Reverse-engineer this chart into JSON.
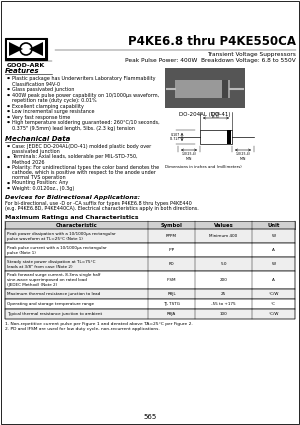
{
  "title": "P4KE6.8 thru P4KE550CA",
  "subtitle1": "Transient Voltage Suppressors",
  "subtitle2": "Peak Pulse Power: 400W  Breakdown Voltage: 6.8 to 550V",
  "company": "GOOD-ARK",
  "page": "565",
  "features_title": "Features",
  "features": [
    "Plastic package has Underwriters Laboratory Flammability\nClassification 94V-0",
    "Glass passivated junction",
    "400W peak pulse power capability on 10/1000μs waveform,\nrepetition rate (duty cycle): 0.01%",
    "Excellent clamping capability",
    "Low incremental surge resistance",
    "Very fast response time",
    "High temperature soldering guaranteed: 260°C/10 seconds,\n0.375\" (9.5mm) lead length, 5lbs. (2.3 kg) tension"
  ],
  "package_label": "DO-204AL (DO-41)",
  "mech_title": "Mechanical Data",
  "mech_items": [
    "Case: JEDEC DO-204AL(DO-41) molded plastic body over\npassivated junction",
    "Terminals: Axial leads, solderable per MIL-STD-750,\nMethod 2026",
    "Polarity: For unidirectional types the color band denotes the\ncathode, which is positive with respect to the anode under\nnormal TVS operation",
    "Mounting Position: Any",
    "Weight: 0.0120oz., (0.3g)"
  ],
  "bidir_title": "Devices for Bidirectional Applications:",
  "bidir_text1": "For bi-directional, use -D or -CA suffix for types P4KE6.8 thru types P4KE440",
  "bidir_text2": "(e.g. P4KE6.8D, P4KE440CA). Electrical characteristics apply in both directions.",
  "maxrat_title": "Maximum Ratings and Characteristics",
  "table_headers": [
    "Characteristic",
    "Symbol",
    "Values",
    "Unit"
  ],
  "table_rows": [
    [
      "Peak power dissipation with a 10/1000μs rectangular\npulse waveform at TL=25°C (Note 1)",
      "PPPM",
      "Minimum 400",
      "W"
    ],
    [
      "Peak pulse current with a 10/1000μs rectangular\npulse (Note 1)",
      "IPP",
      "",
      "A"
    ],
    [
      "Steady state power dissipation at TL=75°C\nleads at 3/8\" from case (Note 2)",
      "PD",
      "5.0",
      "W"
    ],
    [
      "Peak forward surge current, 8.3ms single half\nsine-wave superimposed on rated load\n(JEDEC Method) (Note 2)",
      "IFSM",
      "200",
      "A"
    ],
    [
      "Maximum thermal resistance junction to lead",
      "RθJL",
      "25",
      "°C/W"
    ],
    [
      "Operating and storage temperature range",
      "TJ, TSTG",
      "-55 to +175",
      "°C"
    ],
    [
      "Typical thermal resistance junction to ambient",
      "RθJA",
      "100",
      "°C/W"
    ]
  ],
  "note1": "1. Non-repetitive current pulse per Figure 1 and derated above TA=25°C per Figure 2.",
  "note2": "2. PD and IFSM are used for low duty cycle, non-recurrent applications.",
  "dim_text": "Dimensions in inches and (millimeters)",
  "bg_color": "#ffffff",
  "text_color": "#000000",
  "line_color": "#000000",
  "header_bg": "#d0d0d0",
  "row_even_bg": "#eeeeee",
  "row_odd_bg": "#ffffff"
}
